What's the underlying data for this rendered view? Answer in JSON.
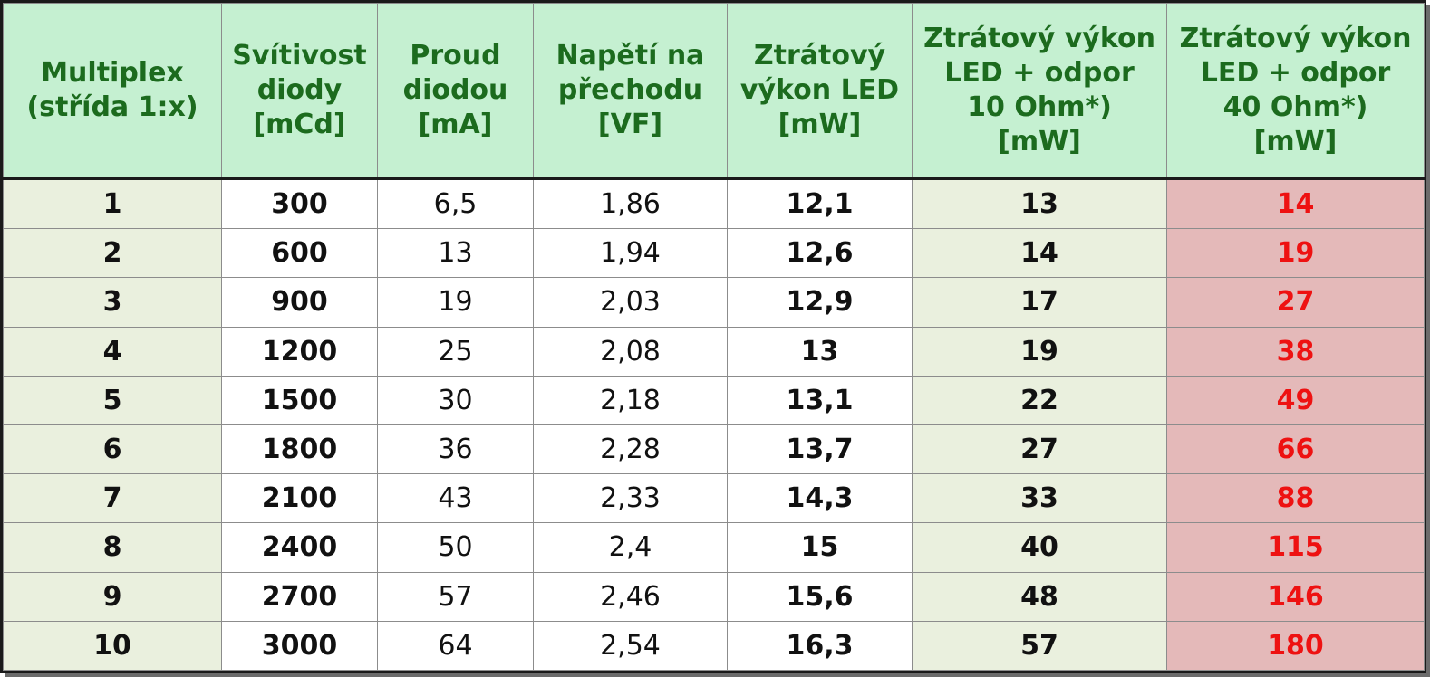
{
  "table": {
    "headers": [
      [
        "Multiplex",
        "(střída 1:x)"
      ],
      [
        "Svítivost",
        "diody",
        "[mCd]"
      ],
      [
        "Proud",
        "diodou",
        "[mA]"
      ],
      [
        "Napětí na",
        "přechodu",
        "[VF]"
      ],
      [
        "Ztrátový",
        "výkon LED",
        "[mW]"
      ],
      [
        "Ztrátový výkon",
        "LED + odpor",
        "10 Ohm*)",
        "[mW]"
      ],
      [
        "Ztrátový výkon",
        "LED + odpor",
        "40 Ohm*)",
        "[mW]"
      ]
    ],
    "rows": [
      [
        "1",
        "300",
        "6,5",
        "1,86",
        "12,1",
        "13",
        "14"
      ],
      [
        "2",
        "600",
        "13",
        "1,94",
        "12,6",
        "14",
        "19"
      ],
      [
        "3",
        "900",
        "19",
        "2,03",
        "12,9",
        "17",
        "27"
      ],
      [
        "4",
        "1200",
        "25",
        "2,08",
        "13",
        "19",
        "38"
      ],
      [
        "5",
        "1500",
        "30",
        "2,18",
        "13,1",
        "22",
        "49"
      ],
      [
        "6",
        "1800",
        "36",
        "2,28",
        "13,7",
        "27",
        "66"
      ],
      [
        "7",
        "2100",
        "43",
        "2,33",
        "14,3",
        "33",
        "88"
      ],
      [
        "8",
        "2400",
        "50",
        "2,4",
        "15",
        "40",
        "115"
      ],
      [
        "9",
        "2700",
        "57",
        "2,46",
        "15,6",
        "48",
        "146"
      ],
      [
        "10",
        "3000",
        "64",
        "2,54",
        "16,3",
        "57",
        "180"
      ]
    ]
  },
  "colors": {
    "header_bg": "#c5f0d1",
    "header_text": "#1c6b1e",
    "light_column_bg": "#eaf0de",
    "highlight_column_bg": "#e4b9b9",
    "highlight_text": "#ee1111"
  }
}
